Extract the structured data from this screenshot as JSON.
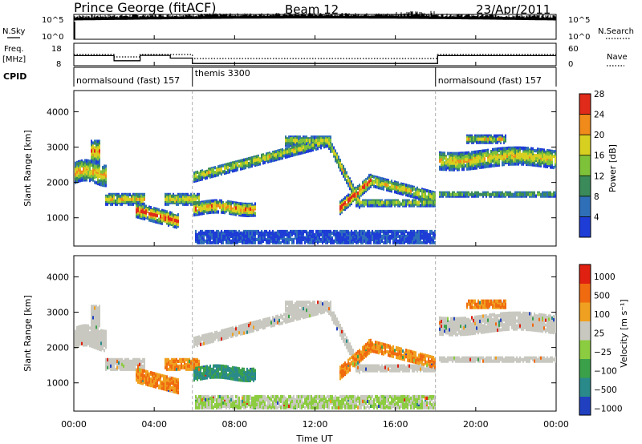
{
  "header": {
    "station": "Prince George (fitACF)",
    "beam": "Beam 12",
    "date": "23/Apr/2011"
  },
  "strips": {
    "nsky_label": "N.Sky",
    "nsky_ticks": [
      "10^5",
      "10^0"
    ],
    "nsearch_label": "N.Search",
    "nsearch_ticks": [
      "10^5",
      "10^0"
    ],
    "freq_label_line1": "Freq.",
    "freq_label_line2": "[MHz]",
    "freq_ticks": [
      "18",
      "8"
    ],
    "nave_label": "Nave",
    "nave_ticks": [
      "60",
      "0"
    ],
    "cpid_label": "CPID"
  },
  "chart_data": [
    {
      "type": "line",
      "name": "operating-parameters",
      "x_range_hours": [
        0,
        24
      ],
      "freq_mhz": {
        "x_hours": [
          0,
          2.0,
          2.0,
          3.3,
          3.3,
          4.8,
          4.8,
          5.9,
          5.9,
          18.1,
          18.1,
          24
        ],
        "y": [
          12.5,
          12.5,
          10.2,
          10.2,
          12.6,
          12.6,
          11.4,
          11.4,
          9.0,
          9.0,
          12.5,
          12.5
        ]
      },
      "cpid_segments": [
        {
          "label": "normalsound (fast) 157",
          "start_hour": 0,
          "end_hour": 5.9
        },
        {
          "label": "themis 3300",
          "start_hour": 5.9,
          "end_hour": 18.0
        },
        {
          "label": "normalsound (fast) 157",
          "start_hour": 18.0,
          "end_hour": 24
        }
      ]
    },
    {
      "type": "heatmap",
      "name": "power",
      "ylabel": "Slant Range [km]",
      "ylim": [
        200,
        4600
      ],
      "yticks": [
        1000,
        2000,
        3000,
        4000
      ],
      "colorbar_label": "Power [dB]",
      "colorbar_ticks": [
        "4",
        "8",
        "12",
        "16",
        "20",
        "24",
        "28"
      ],
      "colorbar_colors": [
        "#1e3cd6",
        "#2f6fb8",
        "#3a8a5a",
        "#7ec23a",
        "#d8d020",
        "#f08a1a",
        "#e02a1a"
      ]
    },
    {
      "type": "heatmap",
      "name": "velocity",
      "ylabel": "Slant Range [km]",
      "ylim": [
        200,
        4600
      ],
      "yticks": [
        1000,
        2000,
        3000,
        4000
      ],
      "colorbar_label": "Velocity [m s⁻¹]",
      "colorbar_ticks": [
        "1000",
        "500",
        "100",
        "25",
        "−25",
        "−100",
        "−500",
        "−1000"
      ],
      "colorbar_colors": [
        "#2040c0",
        "#2a8a8a",
        "#3aa04a",
        "#8ccc40",
        "#c8c8c0",
        "#f0a020",
        "#f06a10",
        "#e02010"
      ]
    }
  ],
  "xaxis": {
    "ticks": [
      "00:00",
      "04:00",
      "08:00",
      "12:00",
      "16:00",
      "20:00",
      "00:00"
    ],
    "label": "Time UT"
  }
}
